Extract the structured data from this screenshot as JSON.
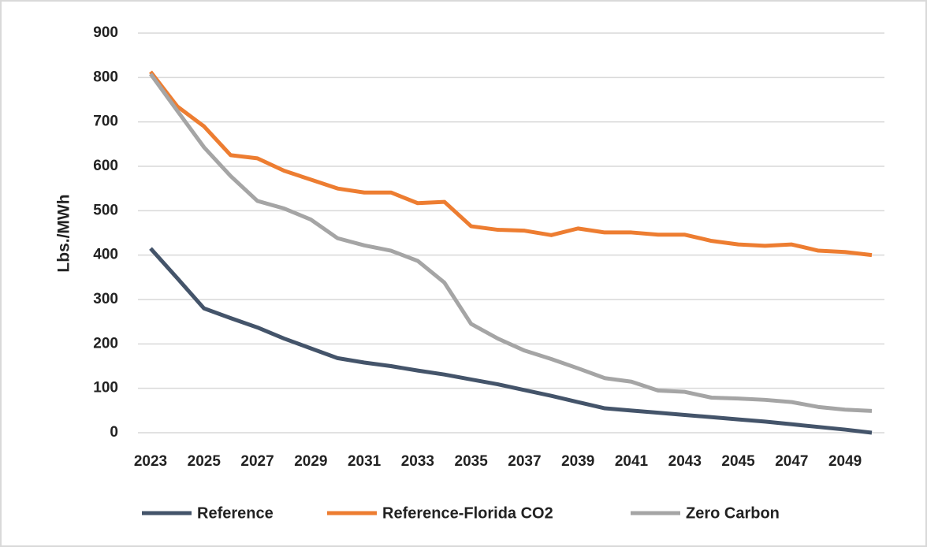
{
  "chart_data": {
    "type": "line",
    "y_label": "Lbs./MWh",
    "x": [
      2023,
      2024,
      2025,
      2026,
      2027,
      2028,
      2029,
      2030,
      2031,
      2032,
      2033,
      2034,
      2035,
      2036,
      2037,
      2038,
      2039,
      2040,
      2041,
      2042,
      2043,
      2044,
      2045,
      2046,
      2047,
      2048,
      2049,
      2050
    ],
    "xlim": [
      2023,
      2050
    ],
    "xticks": [
      2023,
      2025,
      2027,
      2029,
      2031,
      2033,
      2035,
      2037,
      2039,
      2041,
      2043,
      2045,
      2047,
      2049
    ],
    "ylim": [
      0,
      900
    ],
    "yticks": [
      0,
      100,
      200,
      300,
      400,
      500,
      600,
      700,
      800,
      900
    ],
    "grid": true,
    "legend": "bottom",
    "series": [
      {
        "name": "Reference",
        "color": "#44546a",
        "values": [
          415,
          348,
          280,
          258,
          237,
          212,
          190,
          168,
          158,
          150,
          140,
          131,
          120,
          109,
          96,
          83,
          69,
          55,
          50,
          45,
          40,
          35,
          30,
          25,
          19,
          13,
          7,
          0
        ]
      },
      {
        "name": "Reference-Florida CO2",
        "color": "#ed7d31",
        "values": [
          813,
          735,
          690,
          625,
          618,
          590,
          570,
          550,
          541,
          541,
          517,
          520,
          465,
          457,
          455,
          445,
          460,
          451,
          451,
          446,
          446,
          432,
          424,
          421,
          424,
          410,
          407,
          400
        ]
      },
      {
        "name": "Zero Carbon",
        "color": "#a5a5a5",
        "values": [
          808,
          725,
          643,
          578,
          522,
          505,
          480,
          438,
          422,
          410,
          387,
          338,
          245,
          212,
          185,
          166,
          145,
          123,
          115,
          95,
          92,
          79,
          77,
          74,
          69,
          58,
          52,
          49
        ]
      }
    ]
  }
}
